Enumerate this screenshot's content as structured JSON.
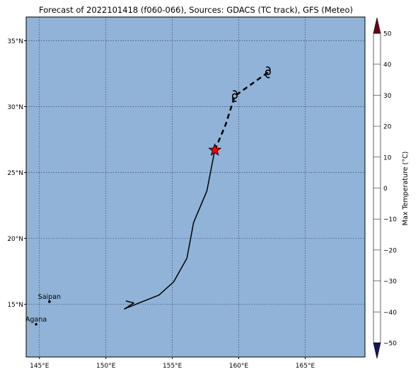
{
  "title": "Forecast of 2022101418 (f060-066), Sources: GDACS (TC track), GFS (Meteo)",
  "map": {
    "lon_range": [
      144,
      169.5
    ],
    "lat_range": [
      11,
      36.8
    ],
    "ocean_color": "#91b3d7",
    "grid": true,
    "grid_style": "dotted",
    "lon_ticks": [
      145,
      150,
      155,
      160,
      165
    ],
    "lon_tick_labels": [
      "145°E",
      "150°E",
      "155°E",
      "160°E",
      "165°E"
    ],
    "lat_ticks": [
      15,
      20,
      25,
      30,
      35
    ],
    "lat_tick_labels": [
      "15°N",
      "20°N",
      "25°N",
      "30°N",
      "35°N"
    ]
  },
  "cities": [
    {
      "name": "Saipan",
      "lon": 145.75,
      "lat": 15.2
    },
    {
      "name": "Agana",
      "lon": 144.75,
      "lat": 13.48
    }
  ],
  "track": {
    "past": [
      [
        151.5,
        15.25
      ],
      [
        152.1,
        15.1
      ],
      [
        151.4,
        14.65
      ],
      [
        152.5,
        15.1
      ],
      [
        154.0,
        15.7
      ],
      [
        155.1,
        16.7
      ],
      [
        156.1,
        18.5
      ],
      [
        156.6,
        21.2
      ],
      [
        157.6,
        23.6
      ],
      [
        158.2,
        26.7
      ]
    ],
    "forecast": [
      [
        158.2,
        26.7
      ],
      [
        159.0,
        28.6
      ],
      [
        159.7,
        30.8
      ],
      [
        162.2,
        32.6
      ]
    ],
    "current_position": {
      "lon": 158.2,
      "lat": 26.7,
      "marker": "star-icon",
      "color": "#ff0000"
    },
    "forecast_markers": [
      {
        "lon": 159.7,
        "lat": 30.8,
        "marker": "typhoon-icon"
      },
      {
        "lon": 162.2,
        "lat": 32.6,
        "marker": "typhoon-icon"
      }
    ]
  },
  "colorbar": {
    "label": "Max Temperature (°C)",
    "ticks": [
      -50,
      -40,
      -30,
      -20,
      -10,
      0,
      10,
      20,
      30,
      40,
      50
    ],
    "tick_labels": [
      "−50",
      "−40",
      "−30",
      "−20",
      "−10",
      "0",
      "10",
      "20",
      "30",
      "40",
      "50"
    ],
    "colors": [
      "#2a2a8c",
      "#3a5ba5",
      "#5f8cbf",
      "#8fbfdc",
      "#c6e4ef",
      "#eef6f8",
      "#fdf0cf",
      "#fcc98a",
      "#f4895a",
      "#d8412d",
      "#a0102a"
    ],
    "extend_min_color": "#14145e",
    "extend_max_color": "#6b0018"
  }
}
